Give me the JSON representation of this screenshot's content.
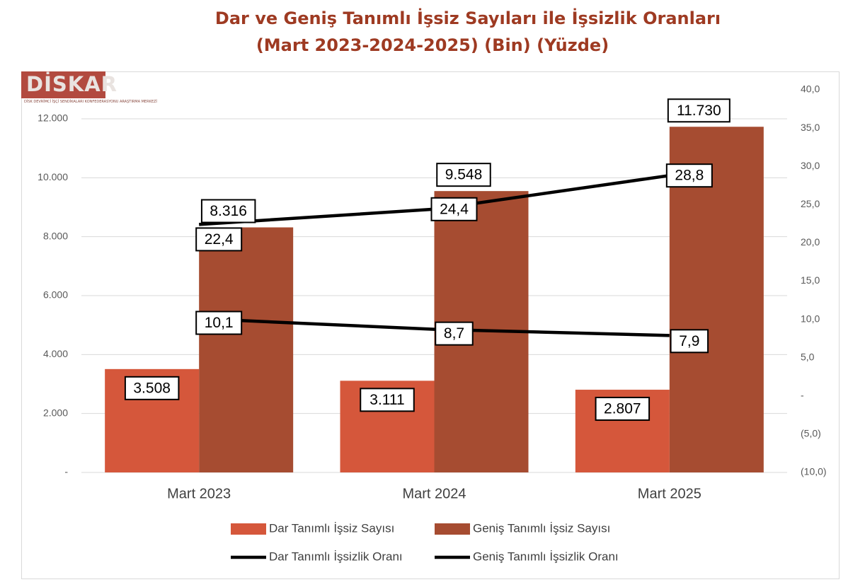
{
  "title_line1": "Dar ve Geniş Tanımlı İşsiz Sayıları ile İşsizlik Oranları",
  "title_line2": "(Mart 2023-2024-2025) (Bin) (Yüzde)",
  "logo": {
    "text": "DİSKAR",
    "subtitle": "DİSK DEVRİMCİ İŞÇİ SENDİKALARI KONFEDERASYONU ARAŞTIRMA MERKEZİ"
  },
  "colors": {
    "dar_bar": "#d5573b",
    "genis_bar": "#a64c31",
    "line": "#000000",
    "title": "#9e3a22"
  },
  "chart_data": {
    "type": "bar",
    "categories": [
      "Mart 2023",
      "Mart 2024",
      "Mart 2025"
    ],
    "series": [
      {
        "name": "Dar Tanımlı İşsiz Sayısı",
        "type": "bar",
        "axis": "left",
        "values": [
          3508,
          3111,
          2807
        ],
        "labels": [
          "3.508",
          "3.111",
          "2.807"
        ]
      },
      {
        "name": "Geniş Tanımlı İşsiz Sayısı",
        "type": "bar",
        "axis": "left",
        "values": [
          8316,
          9548,
          11730
        ],
        "labels": [
          "8.316",
          "9.548",
          "11.730"
        ]
      },
      {
        "name": "Dar Tanımlı İşsizlik Oranı",
        "type": "line",
        "axis": "right",
        "values": [
          10.1,
          8.7,
          7.9
        ],
        "labels": [
          "10,1",
          "8,7",
          "7,9"
        ]
      },
      {
        "name": "Geniş Tanımlı İşsizlik Oranı",
        "type": "line",
        "axis": "right",
        "values": [
          22.4,
          24.4,
          28.8
        ],
        "labels": [
          "22,4",
          "24,4",
          "28,8"
        ]
      }
    ],
    "left_axis": {
      "min": 0,
      "max": 12000,
      "ticks": [
        0,
        2000,
        4000,
        6000,
        8000,
        10000,
        12000
      ],
      "tick_labels": [
        "-",
        "2.000",
        "4.000",
        "6.000",
        "8.000",
        "10.000",
        "12.000"
      ]
    },
    "right_axis": {
      "min": -10,
      "max": 40,
      "ticks": [
        -10,
        -5,
        0,
        5,
        10,
        15,
        20,
        25,
        30,
        35,
        40
      ],
      "tick_labels": [
        "(10,0)",
        "(5,0)",
        "-",
        "5,0",
        "10,0",
        "15,0",
        "20,0",
        "25,0",
        "30,0",
        "35,0",
        "40,0"
      ]
    },
    "grid": true,
    "legend": "bottom"
  }
}
